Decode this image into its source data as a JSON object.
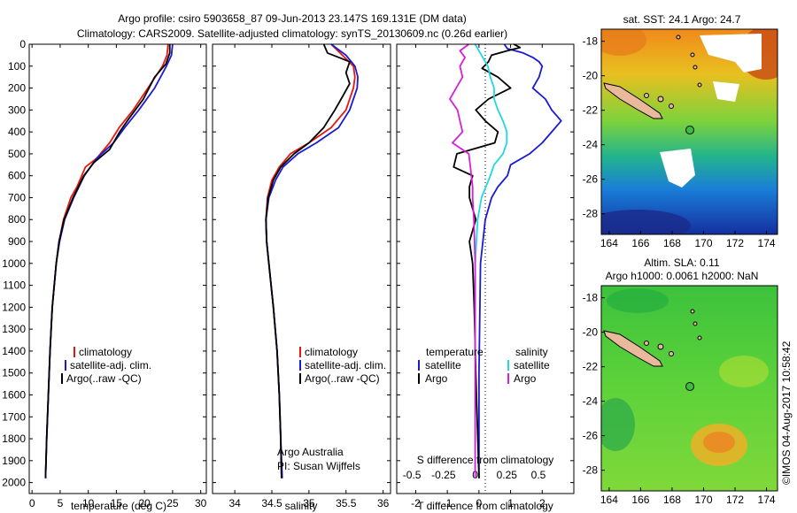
{
  "header": {
    "line1": "Argo profile: csiro 5903658_87 09-Jun-2013 23.147S 169.131E (DM data)",
    "line2": "Climatology: CARS2009. Satellite-adjusted climatology: synTS_20130609.nc (0.26d earlier)"
  },
  "colors": {
    "clim": "#e8170e",
    "sat": "#1a1ad6",
    "argo": "#000000",
    "sat_s": "#1fd8e0",
    "argo_s": "#d81fd8"
  },
  "depth_ticks": [
    0,
    100,
    200,
    300,
    400,
    500,
    600,
    700,
    800,
    900,
    1000,
    1100,
    1200,
    1300,
    1400,
    1500,
    1600,
    1700,
    1800,
    1900,
    2000
  ],
  "credit": {
    "line1": "Argo Australia",
    "line2": "PI: Susan Wijffels"
  },
  "stamp": "©IMOS 04-Aug-2017 10:58:42",
  "chart_data": [
    {
      "type": "line",
      "id": "temperature",
      "xlabel": "temperature (deg C)",
      "xlim": [
        -0.5,
        31
      ],
      "ylim": [
        2050,
        0
      ],
      "xticks": [
        0,
        5,
        10,
        15,
        20,
        25,
        30
      ],
      "legend": [
        "climatology",
        "satellite-adj. clim.",
        "Argo(..raw -QC)"
      ],
      "series": [
        {
          "name": "climatology",
          "depth": [
            0,
            50,
            100,
            200,
            300,
            380,
            450,
            520,
            560,
            650,
            700,
            800,
            900,
            1000,
            1200,
            1400,
            1600,
            1800,
            1980
          ],
          "values": [
            24.2,
            24.0,
            23.2,
            20.6,
            18.0,
            15.5,
            13.8,
            11.5,
            9.5,
            8.0,
            6.9,
            5.6,
            4.8,
            4.3,
            3.6,
            3.2,
            2.9,
            2.6,
            2.4
          ]
        },
        {
          "name": "satellite-adj. clim.",
          "depth": [
            0,
            50,
            100,
            200,
            300,
            380,
            450,
            520,
            600,
            700,
            800,
            900,
            1000,
            1200,
            1400,
            1600,
            1800,
            1980
          ],
          "values": [
            25.0,
            24.8,
            23.9,
            21.8,
            19.0,
            16.5,
            14.5,
            11.5,
            9.3,
            7.4,
            5.8,
            4.9,
            4.3,
            3.6,
            3.2,
            2.9,
            2.6,
            2.4
          ]
        },
        {
          "name": "Argo(..raw -QC)",
          "depth": [
            0,
            40,
            90,
            150,
            250,
            340,
            400,
            480,
            540,
            600,
            700,
            800,
            900,
            1000,
            1200,
            1400,
            1600,
            1800,
            1980
          ],
          "values": [
            24.5,
            24.5,
            23.8,
            21.8,
            19.8,
            17.2,
            15.6,
            13.8,
            11.0,
            9.2,
            7.3,
            5.7,
            4.8,
            4.3,
            3.6,
            3.2,
            2.9,
            2.6,
            2.4
          ]
        }
      ]
    },
    {
      "type": "line",
      "id": "salinity",
      "xlabel": "salinity",
      "xlim": [
        33.7,
        36.1
      ],
      "ylim": [
        2050,
        0
      ],
      "xticks": [
        34,
        34.5,
        35,
        35.5,
        36
      ],
      "legend": [
        "climatology",
        "satellite-adj. clim.",
        "Argo(..raw -QC)"
      ],
      "series": [
        {
          "name": "climatology",
          "depth": [
            0,
            50,
            100,
            150,
            200,
            300,
            380,
            450,
            500,
            560,
            620,
            700,
            800,
            900,
            1000,
            1200,
            1400,
            1600,
            1800,
            1980
          ],
          "values": [
            35.3,
            35.45,
            35.6,
            35.62,
            35.6,
            35.5,
            35.3,
            35.0,
            34.75,
            34.6,
            34.5,
            34.44,
            34.42,
            34.43,
            34.46,
            34.52,
            34.57,
            34.6,
            34.62,
            34.63
          ]
        },
        {
          "name": "satellite-adj. clim.",
          "depth": [
            0,
            50,
            100,
            150,
            200,
            300,
            380,
            450,
            500,
            560,
            620,
            700,
            800,
            900,
            1000,
            1200,
            1400,
            1600,
            1800,
            1980
          ],
          "values": [
            35.3,
            35.5,
            35.62,
            35.66,
            35.65,
            35.55,
            35.4,
            35.1,
            34.85,
            34.65,
            34.55,
            34.46,
            34.42,
            34.43,
            34.46,
            34.52,
            34.57,
            34.6,
            34.62,
            34.64
          ]
        },
        {
          "name": "Argo(..raw -QC)",
          "depth": [
            0,
            40,
            80,
            130,
            180,
            240,
            300,
            380,
            450,
            500,
            560,
            620,
            700,
            800,
            900,
            1000,
            1200,
            1400,
            1600,
            1800,
            1980
          ],
          "values": [
            35.2,
            35.25,
            35.55,
            35.5,
            35.55,
            35.45,
            35.35,
            35.2,
            35.0,
            34.8,
            34.62,
            34.52,
            34.45,
            34.42,
            34.43,
            34.46,
            34.52,
            34.57,
            34.6,
            34.62,
            34.63
          ]
        }
      ]
    },
    {
      "type": "line",
      "id": "difference",
      "xlabel_top": "S difference from climatology",
      "xlabel": "T difference from climatology",
      "xlim": [
        -2.6,
        3.0
      ],
      "ylim": [
        2050,
        0
      ],
      "xticks": [
        -2,
        -1,
        0,
        1,
        2
      ],
      "xtick_labels": [
        "-2",
        "-1",
        "0",
        "1",
        "2"
      ],
      "s_xticks": [
        -0.5,
        -0.25,
        0,
        0.25,
        0.5
      ],
      "s_xtick_labels": [
        "-0.5",
        "-0.25",
        "0",
        "0.25",
        "0.5"
      ],
      "legend_title_t": "temperature",
      "legend_title_s": "salinity",
      "legend_t": [
        "satellite",
        "Argo"
      ],
      "legend_s": [
        "satellite",
        "Argo"
      ],
      "series": [
        {
          "name": "T satellite",
          "depth": [
            0,
            20,
            40,
            60,
            80,
            100,
            150,
            200,
            250,
            300,
            350,
            400,
            450,
            500,
            550,
            600,
            650,
            700,
            800,
            1000,
            1500,
            1980
          ],
          "values": [
            0.8,
            0.9,
            1.4,
            1.7,
            1.9,
            2.0,
            1.9,
            1.7,
            2.1,
            2.3,
            2.6,
            2.3,
            2.0,
            1.6,
            1.0,
            0.9,
            0.6,
            0.4,
            0.2,
            0.05,
            0.0,
            0.0
          ]
        },
        {
          "name": "T Argo",
          "depth": [
            0,
            15,
            30,
            50,
            80,
            110,
            150,
            200,
            250,
            300,
            350,
            400,
            450,
            500,
            560,
            600,
            650,
            700,
            800,
            900,
            1000,
            1200,
            1500,
            1980
          ],
          "values": [
            1.1,
            1.3,
            0.9,
            0.4,
            0.3,
            0.1,
            0.6,
            1.0,
            0.3,
            -0.1,
            0.2,
            0.6,
            0.5,
            -0.7,
            -0.8,
            -0.2,
            -0.3,
            -0.3,
            -0.1,
            -0.3,
            -0.2,
            -0.15,
            -0.1,
            0.0
          ]
        },
        {
          "name": "S satellite",
          "depth": [
            0,
            50,
            100,
            150,
            200,
            250,
            300,
            350,
            400,
            450,
            500,
            550,
            600,
            700,
            800,
            1000,
            1500,
            1980
          ],
          "values": [
            0.0,
            0.05,
            0.1,
            0.12,
            0.15,
            0.15,
            0.18,
            0.22,
            0.25,
            0.25,
            0.22,
            0.15,
            0.12,
            0.05,
            0.02,
            0.0,
            0.0,
            0.0
          ]
        },
        {
          "name": "S Argo",
          "depth": [
            0,
            30,
            60,
            100,
            150,
            200,
            250,
            300,
            350,
            400,
            450,
            500,
            550,
            600,
            650,
            700,
            800,
            1000,
            1980
          ],
          "values": [
            -0.05,
            -0.12,
            -0.08,
            -0.12,
            -0.1,
            -0.15,
            -0.2,
            -0.14,
            -0.12,
            -0.1,
            -0.18,
            -0.05,
            -0.04,
            -0.03,
            -0.02,
            -0.02,
            -0.01,
            0.0,
            0.0
          ]
        }
      ]
    },
    {
      "type": "heatmap",
      "id": "sst_map",
      "title": "sat. SST: 24.1  Argo: 24.7",
      "xlim": [
        163.5,
        174.7
      ],
      "ylim": [
        -29.2,
        -17.3
      ],
      "xticks": [
        164,
        166,
        168,
        170,
        172,
        174
      ],
      "yticks": [
        -18,
        -20,
        -22,
        -24,
        -26,
        -28
      ],
      "marker": {
        "lon": 169.131,
        "lat": -23.147
      }
    },
    {
      "type": "heatmap",
      "id": "sla_map",
      "title_line1": "Altim. SLA: 0.11",
      "title_line2": "Argo h1000: 0.0061 h2000: NaN",
      "xlim": [
        163.5,
        174.7
      ],
      "ylim": [
        -29.2,
        -17.3
      ],
      "xticks": [
        164,
        166,
        168,
        170,
        172,
        174
      ],
      "yticks": [
        -18,
        -20,
        -22,
        -24,
        -26,
        -28
      ],
      "marker": {
        "lon": 169.131,
        "lat": -23.147
      }
    }
  ]
}
